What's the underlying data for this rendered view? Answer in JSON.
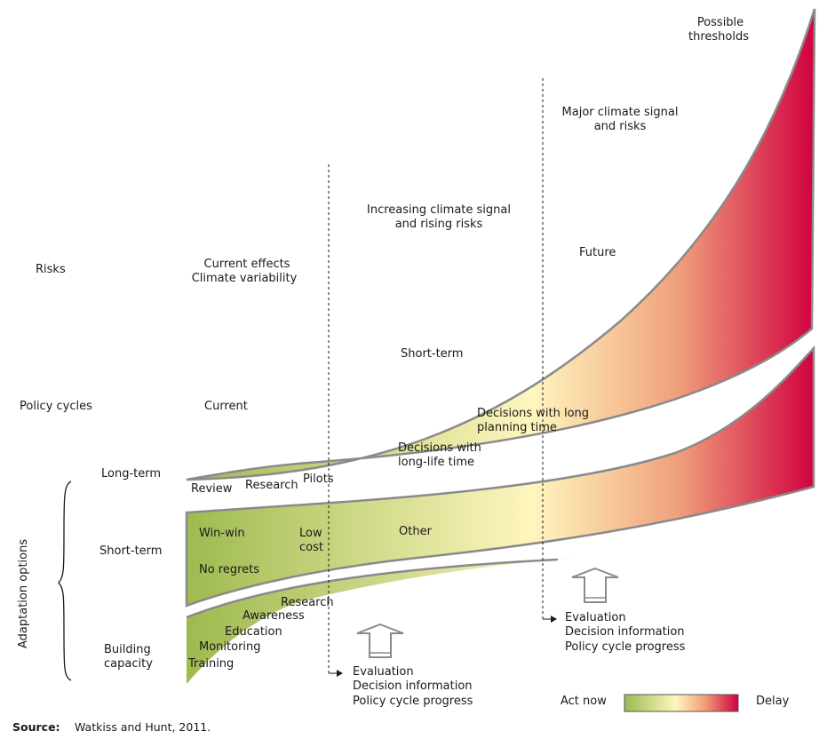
{
  "colors": {
    "green": "#9dba4e",
    "yellow": "#fff6bf",
    "orange": "#f0a17c",
    "red": "#d0003f",
    "band_edge": "#8a8a8a"
  },
  "row_labels": {
    "risks": "Risks",
    "policy_cycles": "Policy cycles",
    "long_term": "Long-term",
    "short_term": "Short-term",
    "building_capacity": [
      "Building",
      "capacity"
    ],
    "adaptation_options": "Adaptation options"
  },
  "risks": {
    "current": [
      "Current effects",
      "Climate variability"
    ],
    "increasing": [
      "Increasing climate signal",
      "and rising risks"
    ],
    "major": [
      "Major climate signal",
      "and risks"
    ],
    "possible": [
      "Possible",
      "thresholds"
    ]
  },
  "policy": {
    "current": "Current",
    "short_term": "Short-term",
    "future": "Future"
  },
  "long_term_band": {
    "review": "Review",
    "research": "Research",
    "pilots": "Pilots",
    "decisions_long_life": [
      "Decisions with",
      "long-life time"
    ],
    "decisions_long_planning": [
      "Decisions with long",
      "planning time"
    ]
  },
  "short_term_band": {
    "win_win": "Win-win",
    "no_regrets": "No regrets",
    "low_cost": [
      "Low",
      "cost"
    ],
    "other": "Other"
  },
  "capacity_band": {
    "research": "Research",
    "awareness": "Awareness",
    "education": "Education",
    "monitoring": "Monitoring",
    "training": "Training"
  },
  "evaluation": {
    "lines": [
      "Evaluation",
      "Decision information",
      "Policy cycle progress"
    ]
  },
  "legend": {
    "act_now": "Act now",
    "delay": "Delay"
  },
  "source": {
    "label": "Source:",
    "text": "Watkiss and Hunt, 2011."
  }
}
